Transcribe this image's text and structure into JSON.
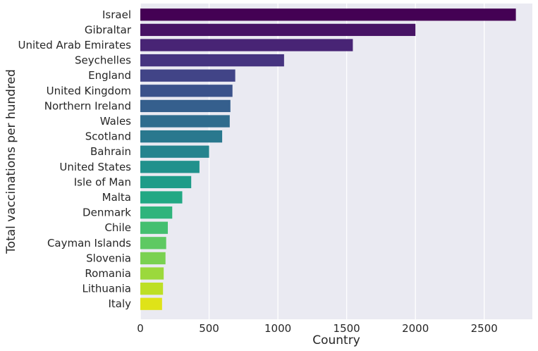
{
  "chart_data": {
    "type": "bar",
    "orientation": "horizontal",
    "xlabel": "Country",
    "ylabel": "Total vaccinations per hundred",
    "xlim": [
      0,
      2850
    ],
    "xticks": [
      0,
      500,
      1000,
      1500,
      2000,
      2500
    ],
    "grid": true,
    "categories": [
      "Israel",
      "Gibraltar",
      "United Arab Emirates",
      "Seychelles",
      "England",
      "United Kingdom",
      "Northern Ireland",
      "Wales",
      "Scotland",
      "Bahrain",
      "United States",
      "Isle of Man",
      "Malta",
      "Denmark",
      "Chile",
      "Cayman Islands",
      "Slovenia",
      "Romania",
      "Lithuania",
      "Italy"
    ],
    "values": [
      2730,
      2000,
      1545,
      1045,
      690,
      670,
      655,
      650,
      595,
      500,
      430,
      370,
      305,
      232,
      200,
      188,
      183,
      170,
      165,
      158
    ],
    "colors": [
      "#440154",
      "#471365",
      "#482475",
      "#463480",
      "#414487",
      "#3b528b",
      "#355f8d",
      "#2f6c8e",
      "#2a788e",
      "#25848e",
      "#21918c",
      "#1e9c89",
      "#22a884",
      "#2fb47c",
      "#44bf70",
      "#5ec962",
      "#7ad151",
      "#9bd93c",
      "#bddf26",
      "#dfe318"
    ]
  }
}
